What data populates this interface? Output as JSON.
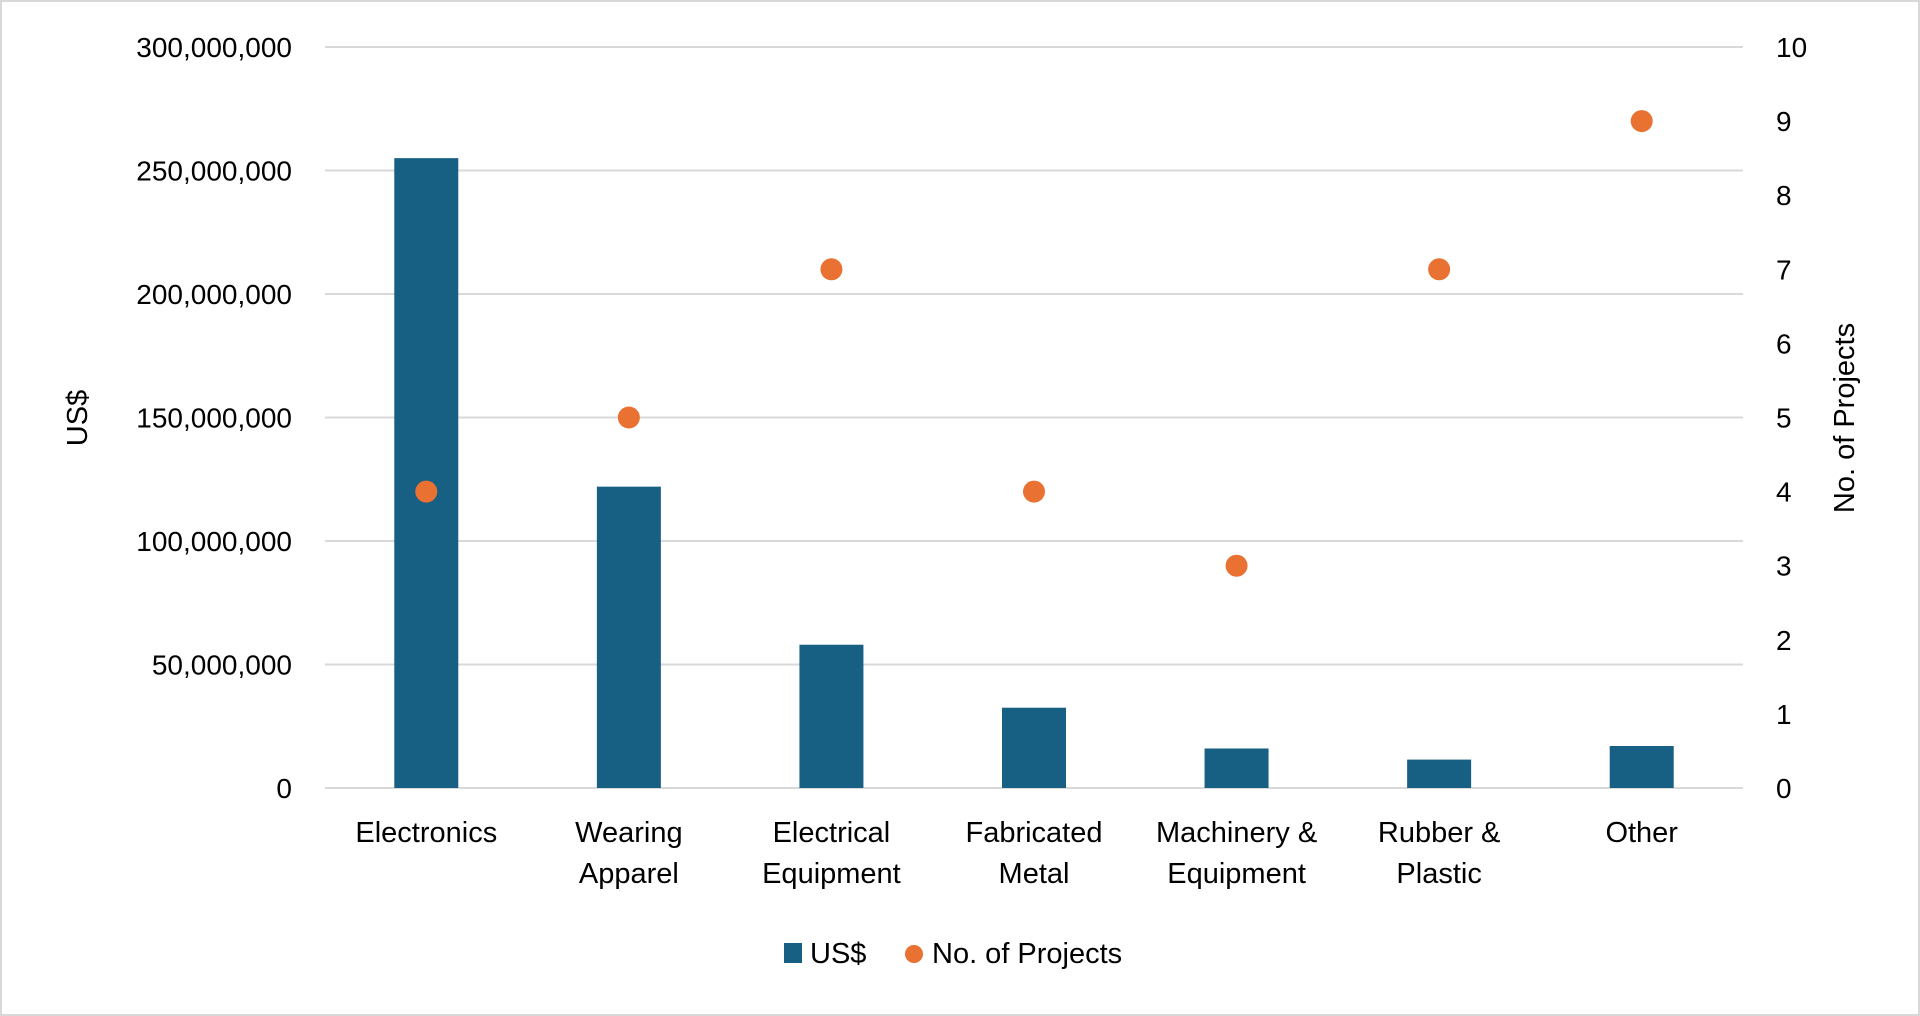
{
  "chart_data": {
    "type": "bar",
    "title": "",
    "categories": [
      [
        "Electronics"
      ],
      [
        "Wearing",
        "Apparel"
      ],
      [
        "Electrical",
        "Equipment"
      ],
      [
        "Fabricated",
        "Metal"
      ],
      [
        "Machinery &",
        "Equipment"
      ],
      [
        "Rubber &",
        "Plastic"
      ],
      [
        "Other"
      ]
    ],
    "series": [
      {
        "name": "US$",
        "type": "bar",
        "axis": "left",
        "color": "#185f84",
        "values": [
          255000000,
          122000000,
          58000000,
          32500000,
          16000000,
          11500000,
          17000000
        ]
      },
      {
        "name": "No. of Projects",
        "type": "scatter",
        "axis": "right",
        "color": "#e97132",
        "values": [
          4,
          5,
          7,
          4,
          3,
          7,
          9
        ]
      }
    ],
    "ylabel": "US$",
    "y2label": "No. of Projects",
    "ylim": [
      0,
      300000000
    ],
    "y2lim": [
      0,
      10
    ],
    "yticks": [
      "0",
      "50,000,000",
      "100,000,000",
      "150,000,000",
      "200,000,000",
      "250,000,000",
      "300,000,000"
    ],
    "y2ticks": [
      "0",
      "1",
      "2",
      "3",
      "4",
      "5",
      "6",
      "7",
      "8",
      "9",
      "10"
    ],
    "grid": true,
    "legend": "bottom-center",
    "gridColor": "#d9d9d9"
  }
}
